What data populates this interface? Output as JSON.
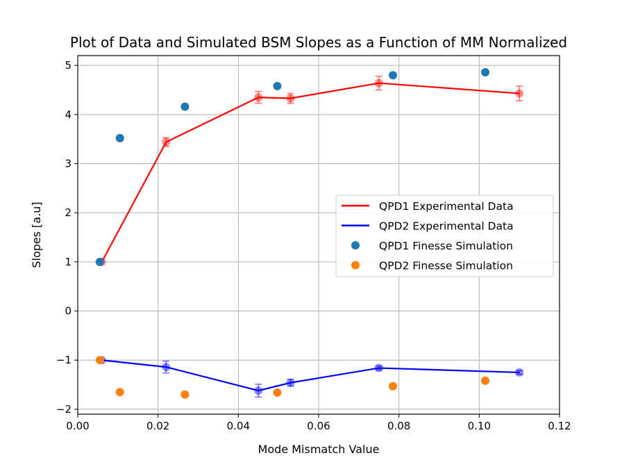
{
  "chart_data": {
    "type": "line",
    "title": "Plot of Data and Simulated BSM Slopes as a Function of MM Normalized",
    "xlabel": "Mode Mismatch Value",
    "ylabel": "Slopes [a.u]",
    "xlim": [
      0.0,
      0.12
    ],
    "ylim": [
      -2.1,
      5.2
    ],
    "xticks": [
      0.0,
      0.02,
      0.04,
      0.06,
      0.08,
      0.1,
      0.12
    ],
    "xtick_labels": [
      "0.00",
      "0.02",
      "0.04",
      "0.06",
      "0.08",
      "0.10",
      "0.12"
    ],
    "yticks": [
      -2,
      -1,
      0,
      1,
      2,
      3,
      4,
      5
    ],
    "ytick_labels": [
      "−2",
      "−1",
      "0",
      "1",
      "2",
      "3",
      "4",
      "5"
    ],
    "grid": true,
    "legend_position": "center-right",
    "series": [
      {
        "name": "QPD1 Experimental Data",
        "kind": "line-errorbar",
        "color": "#ff0000",
        "x": [
          0.006,
          0.022,
          0.045,
          0.053,
          0.075,
          0.11
        ],
        "y": [
          1.0,
          3.44,
          4.35,
          4.33,
          4.64,
          4.43
        ],
        "yerr": [
          0.0,
          0.09,
          0.12,
          0.1,
          0.14,
          0.15
        ]
      },
      {
        "name": "QPD2 Experimental Data",
        "kind": "line-errorbar",
        "color": "#0000ff",
        "x": [
          0.006,
          0.022,
          0.045,
          0.053,
          0.075,
          0.11
        ],
        "y": [
          -1.0,
          -1.14,
          -1.62,
          -1.46,
          -1.16,
          -1.25
        ],
        "yerr": [
          0.0,
          0.12,
          0.13,
          0.07,
          0.04,
          0.04
        ]
      },
      {
        "name": "QPD1 Finesse Simulation",
        "kind": "scatter",
        "color": "#1f77b4",
        "x": [
          0.0055,
          0.0105,
          0.0267,
          0.0497,
          0.0785,
          0.1015
        ],
        "y": [
          1.0,
          3.52,
          4.16,
          4.58,
          4.8,
          4.86
        ]
      },
      {
        "name": "QPD2 Finesse Simulation",
        "kind": "scatter",
        "color": "#ff7f0e",
        "x": [
          0.0055,
          0.0105,
          0.0267,
          0.0497,
          0.0785,
          0.1015
        ],
        "y": [
          -1.0,
          -1.65,
          -1.7,
          -1.66,
          -1.53,
          -1.42
        ]
      }
    ]
  }
}
